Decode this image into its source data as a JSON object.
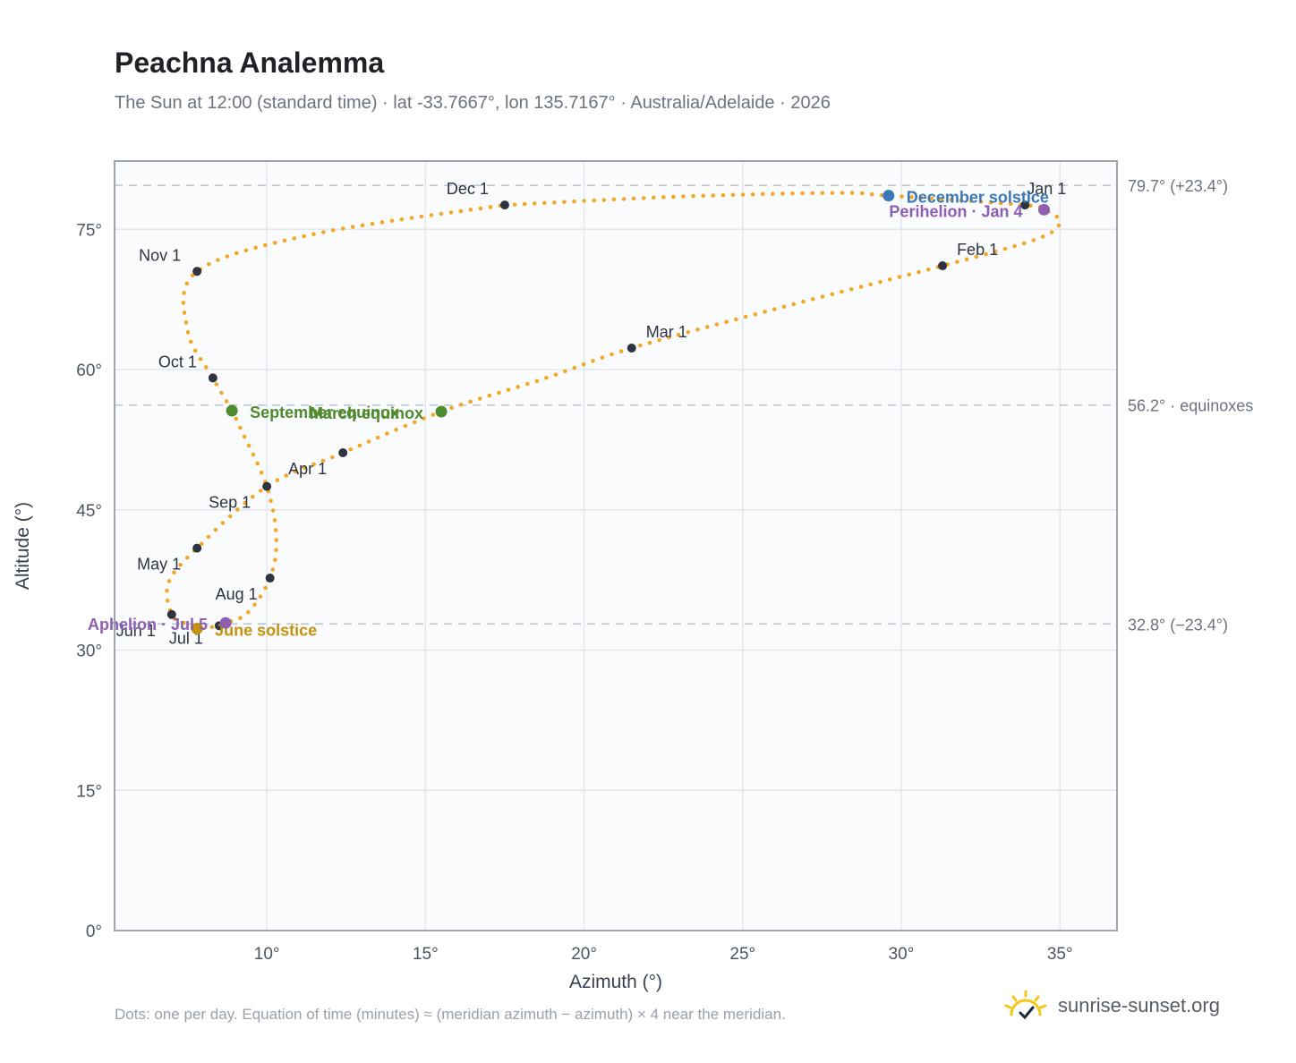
{
  "title": "Peachna Analemma",
  "subtitle": "The Sun at 12:00 (standard time) · lat -33.7667°, lon 135.7167° · Australia/Adelaide · 2026",
  "footnote": "Dots: one per day. Equation of time (minutes) ≈ (meridian azimuth − azimuth) × 4 near the meridian.",
  "brand": {
    "text": "sunrise-sunset.org",
    "icon": "sun-checkmark-icon",
    "color": "#f5c518"
  },
  "chart_data": {
    "type": "scatter",
    "xlabel": "Azimuth (°)",
    "ylabel": "Altitude (°)",
    "xlim": [
      5.2,
      36.8
    ],
    "ylim": [
      0,
      82.3
    ],
    "xticks": [
      10,
      15,
      20,
      25,
      30,
      35
    ],
    "yticks": [
      0,
      15,
      30,
      45,
      60,
      75
    ],
    "tick_suffix": "°",
    "grid": true,
    "path_color": "#f5a623",
    "path_points": [
      {
        "date": "Dec 1",
        "az": 17.5,
        "alt": 77.6
      },
      {
        "date": "Dec 8",
        "az": 23.0,
        "alt": 78.5
      },
      {
        "date": "Dec 15",
        "az": 28.0,
        "alt": 78.9
      },
      {
        "date": "Dec 21",
        "az": 29.6,
        "alt": 78.6
      },
      {
        "date": "Jan 1",
        "az": 33.9,
        "alt": 77.6
      },
      {
        "date": "Jan 4",
        "az": 34.5,
        "alt": 77.1
      },
      {
        "date": "Jan 12",
        "az": 35.0,
        "alt": 75.8
      },
      {
        "date": "Jan 20",
        "az": 34.3,
        "alt": 74.0
      },
      {
        "date": "Feb 1",
        "az": 31.3,
        "alt": 71.1
      },
      {
        "date": "Feb 15",
        "az": 26.5,
        "alt": 66.9
      },
      {
        "date": "Mar 1",
        "az": 21.5,
        "alt": 62.3
      },
      {
        "date": "Mar 10",
        "az": 18.8,
        "alt": 59.1
      },
      {
        "date": "Mar 20",
        "az": 15.5,
        "alt": 55.5
      },
      {
        "date": "Apr 1",
        "az": 12.4,
        "alt": 51.1
      },
      {
        "date": "Apr 15",
        "az": 10.0,
        "alt": 47.5
      },
      {
        "date": "May 1",
        "az": 7.8,
        "alt": 40.9
      },
      {
        "date": "May 15",
        "az": 6.9,
        "alt": 37.2
      },
      {
        "date": "Jun 1",
        "az": 7.0,
        "alt": 33.8
      },
      {
        "date": "Jun 10",
        "az": 7.4,
        "alt": 32.9
      },
      {
        "date": "Jun 21",
        "az": 7.8,
        "alt": 32.3
      },
      {
        "date": "Jul 1",
        "az": 8.5,
        "alt": 32.6
      },
      {
        "date": "Jul 5",
        "az": 8.7,
        "alt": 32.9
      },
      {
        "date": "Jul 15",
        "az": 9.4,
        "alt": 34.0
      },
      {
        "date": "Aug 1",
        "az": 10.1,
        "alt": 37.7
      },
      {
        "date": "Aug 15",
        "az": 10.3,
        "alt": 42.0
      },
      {
        "date": "Sep 1",
        "az": 10.0,
        "alt": 47.5
      },
      {
        "date": "Sep 15",
        "az": 9.2,
        "alt": 53.5
      },
      {
        "date": "Sep 23",
        "az": 8.9,
        "alt": 55.6
      },
      {
        "date": "Oct 1",
        "az": 8.3,
        "alt": 59.1
      },
      {
        "date": "Oct 15",
        "az": 7.5,
        "alt": 64.2
      },
      {
        "date": "Nov 1",
        "az": 7.8,
        "alt": 70.5
      },
      {
        "date": "Nov 15",
        "az": 11.5,
        "alt": 74.5
      },
      {
        "date": "Dec 1",
        "az": 17.5,
        "alt": 77.6
      }
    ],
    "month_points": [
      {
        "label": "Jan 1",
        "az": 33.9,
        "alt": 77.6,
        "anchor": "start",
        "dx": 2,
        "dy": -12
      },
      {
        "label": "Feb 1",
        "az": 31.3,
        "alt": 71.1,
        "anchor": "start",
        "dx": 16,
        "dy": -12
      },
      {
        "label": "Mar 1",
        "az": 21.5,
        "alt": 62.3,
        "anchor": "start",
        "dx": 16,
        "dy": -12
      },
      {
        "label": "Apr 1",
        "az": 12.4,
        "alt": 51.1,
        "anchor": "end",
        "dx": -18,
        "dy": 24
      },
      {
        "label": "May 1",
        "az": 7.8,
        "alt": 40.9,
        "anchor": "end",
        "dx": -18,
        "dy": 24
      },
      {
        "label": "Jun 1",
        "az": 7.0,
        "alt": 33.8,
        "anchor": "end",
        "dx": -18,
        "dy": 24
      },
      {
        "label": "Jul 1",
        "az": 8.5,
        "alt": 32.6,
        "anchor": "end",
        "dx": -18,
        "dy": 20
      },
      {
        "label": "Aug 1",
        "az": 10.1,
        "alt": 37.7,
        "anchor": "end",
        "dx": -14,
        "dy": 24
      },
      {
        "label": "Sep 1",
        "az": 10.0,
        "alt": 47.5,
        "anchor": "end",
        "dx": -18,
        "dy": 24
      },
      {
        "label": "Oct 1",
        "az": 8.3,
        "alt": 59.1,
        "anchor": "end",
        "dx": -18,
        "dy": -12
      },
      {
        "label": "Nov 1",
        "az": 7.8,
        "alt": 70.5,
        "anchor": "end",
        "dx": -18,
        "dy": -12
      },
      {
        "label": "Dec 1",
        "az": 17.5,
        "alt": 77.6,
        "anchor": "end",
        "dx": -18,
        "dy": -12
      }
    ],
    "events": [
      {
        "label": "December solstice",
        "az": 29.6,
        "alt": 78.6,
        "color": "#3a78b8",
        "anchor": "start",
        "dx": 20,
        "dy": 8
      },
      {
        "label": "Perihelion · Jan 4",
        "az": 34.5,
        "alt": 77.1,
        "color": "#8e5fb0",
        "anchor": "end",
        "dx": -24,
        "dy": 8
      },
      {
        "label": "March equinox",
        "az": 15.5,
        "alt": 55.5,
        "color": "#4f8a2e",
        "anchor": "end",
        "dx": -20,
        "dy": 8
      },
      {
        "label": "September equinox",
        "az": 8.9,
        "alt": 55.6,
        "color": "#4f8a2e",
        "anchor": "start",
        "dx": 20,
        "dy": 8
      },
      {
        "label": "June solstice",
        "az": 7.8,
        "alt": 32.3,
        "color": "#c6920b",
        "anchor": "start",
        "dx": 20,
        "dy": 8
      },
      {
        "label": "Aphelion · Jul 5",
        "az": 8.7,
        "alt": 32.9,
        "color": "#8e5fb0",
        "anchor": "end",
        "dx": -20,
        "dy": 8
      }
    ],
    "reference_lines": [
      {
        "alt": 79.7,
        "label": "79.7° (+23.4°)"
      },
      {
        "alt": 56.2,
        "label": "56.2° · equinoxes"
      },
      {
        "alt": 32.8,
        "label": "32.8° (−23.4°)"
      }
    ]
  }
}
